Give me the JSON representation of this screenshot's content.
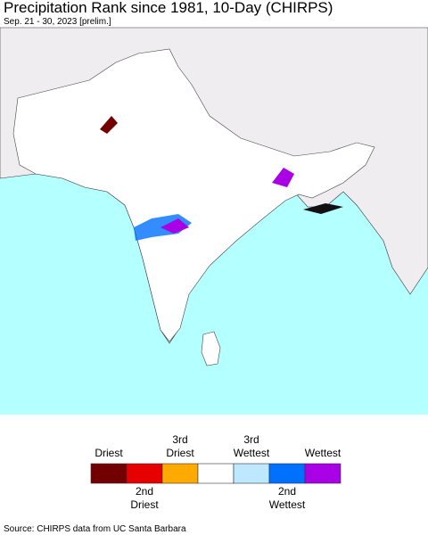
{
  "header": {
    "title": "Precipitation Rank since 1981, 10-Day (CHIRPS)",
    "subtitle": "Sep. 21 - 30, 2023 [prelim.]"
  },
  "legend": {
    "items": [
      {
        "color": "#730000",
        "label_above": [
          "Driest"
        ]
      },
      {
        "color": "#e60000",
        "label_below": [
          "2nd",
          "Driest"
        ]
      },
      {
        "color": "#ffaa00",
        "label_above": [
          "3rd",
          "Driest"
        ]
      },
      {
        "color": "#ffffff"
      },
      {
        "color": "#bee8ff",
        "label_above": [
          "3rd",
          "Wettest"
        ]
      },
      {
        "color": "#0070ff",
        "label_below": [
          "2nd",
          "Wettest"
        ]
      },
      {
        "color": "#a900e6",
        "label_above": [
          "Wettest"
        ]
      }
    ]
  },
  "footer": {
    "source": "Source: CHIRPS data from UC Santa Barbara"
  }
}
